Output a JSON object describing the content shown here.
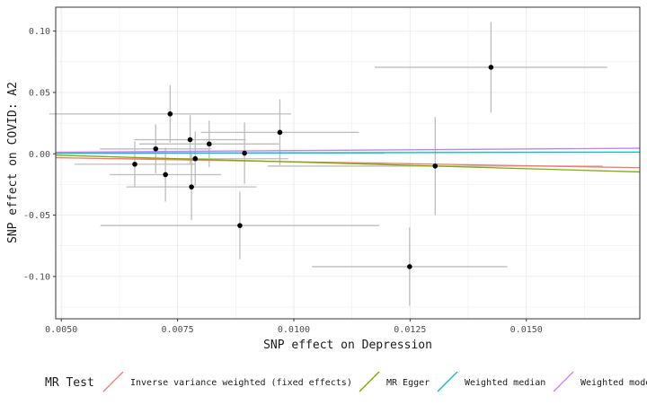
{
  "chart_data": {
    "type": "scatter",
    "title": "",
    "xlabel": "SNP effect on Depression",
    "ylabel": "SNP effect on COVID: A2",
    "xlim": [
      0.00488,
      0.01744
    ],
    "ylim": [
      -0.1345,
      0.1195
    ],
    "x_ticks": [
      0.005,
      0.0075,
      0.01,
      0.0125,
      0.015
    ],
    "x_tick_labels": [
      "0.0050",
      "0.0075",
      "0.0100",
      "0.0125",
      "0.0150"
    ],
    "y_ticks": [
      -0.1,
      -0.05,
      0.0,
      0.05,
      0.1
    ],
    "y_tick_labels": [
      "-0.10",
      "-0.05",
      "0.00",
      "0.05",
      "0.10"
    ],
    "grid": true,
    "legend_position": "bottom",
    "points": [
      {
        "x": 0.00734,
        "y": 0.0325,
        "xerr": 0.0026,
        "yerr": 0.0235
      },
      {
        "x": 0.00703,
        "y": 0.004,
        "xerr": 0.0012,
        "yerr": 0.02
      },
      {
        "x": 0.00658,
        "y": -0.0085,
        "xerr": 0.0013,
        "yerr": 0.0185
      },
      {
        "x": 0.00724,
        "y": -0.017,
        "xerr": 0.0012,
        "yerr": 0.022
      },
      {
        "x": 0.00777,
        "y": 0.0115,
        "xerr": 0.0012,
        "yerr": 0.02
      },
      {
        "x": 0.00788,
        "y": -0.004,
        "xerr": 0.002,
        "yerr": 0.022
      },
      {
        "x": 0.0078,
        "y": -0.027,
        "xerr": 0.0014,
        "yerr": 0.027
      },
      {
        "x": 0.00818,
        "y": 0.008,
        "xerr": 0.0015,
        "yerr": 0.019
      },
      {
        "x": 0.00894,
        "y": 0.0005,
        "xerr": 0.003,
        "yerr": 0.025
      },
      {
        "x": 0.00884,
        "y": -0.0585,
        "xerr": 0.003,
        "yerr": 0.0275
      },
      {
        "x": 0.0097,
        "y": 0.0175,
        "xerr": 0.0017,
        "yerr": 0.027
      },
      {
        "x": 0.01304,
        "y": -0.01,
        "xerr": 0.0036,
        "yerr": 0.04
      },
      {
        "x": 0.01249,
        "y": -0.092,
        "xerr": 0.0021,
        "yerr": 0.032
      },
      {
        "x": 0.01424,
        "y": 0.0705,
        "xerr": 0.0025,
        "yerr": 0.037
      }
    ],
    "series": [
      {
        "name": "Inverse variance weighted (fixed effects)",
        "color": "#F8766D",
        "intercept": 0,
        "slope": -0.65
      },
      {
        "name": "MR Egger",
        "color": "#7CAE00",
        "intercept": 0.00415,
        "slope": -1.085
      },
      {
        "name": "Weighted median",
        "color": "#00BFC4",
        "intercept": 0,
        "slope": 0.08
      },
      {
        "name": "Weighted mode",
        "color": "#C77CFF",
        "intercept": 0,
        "slope": 0.26
      }
    ],
    "legend_title": "MR Test"
  }
}
